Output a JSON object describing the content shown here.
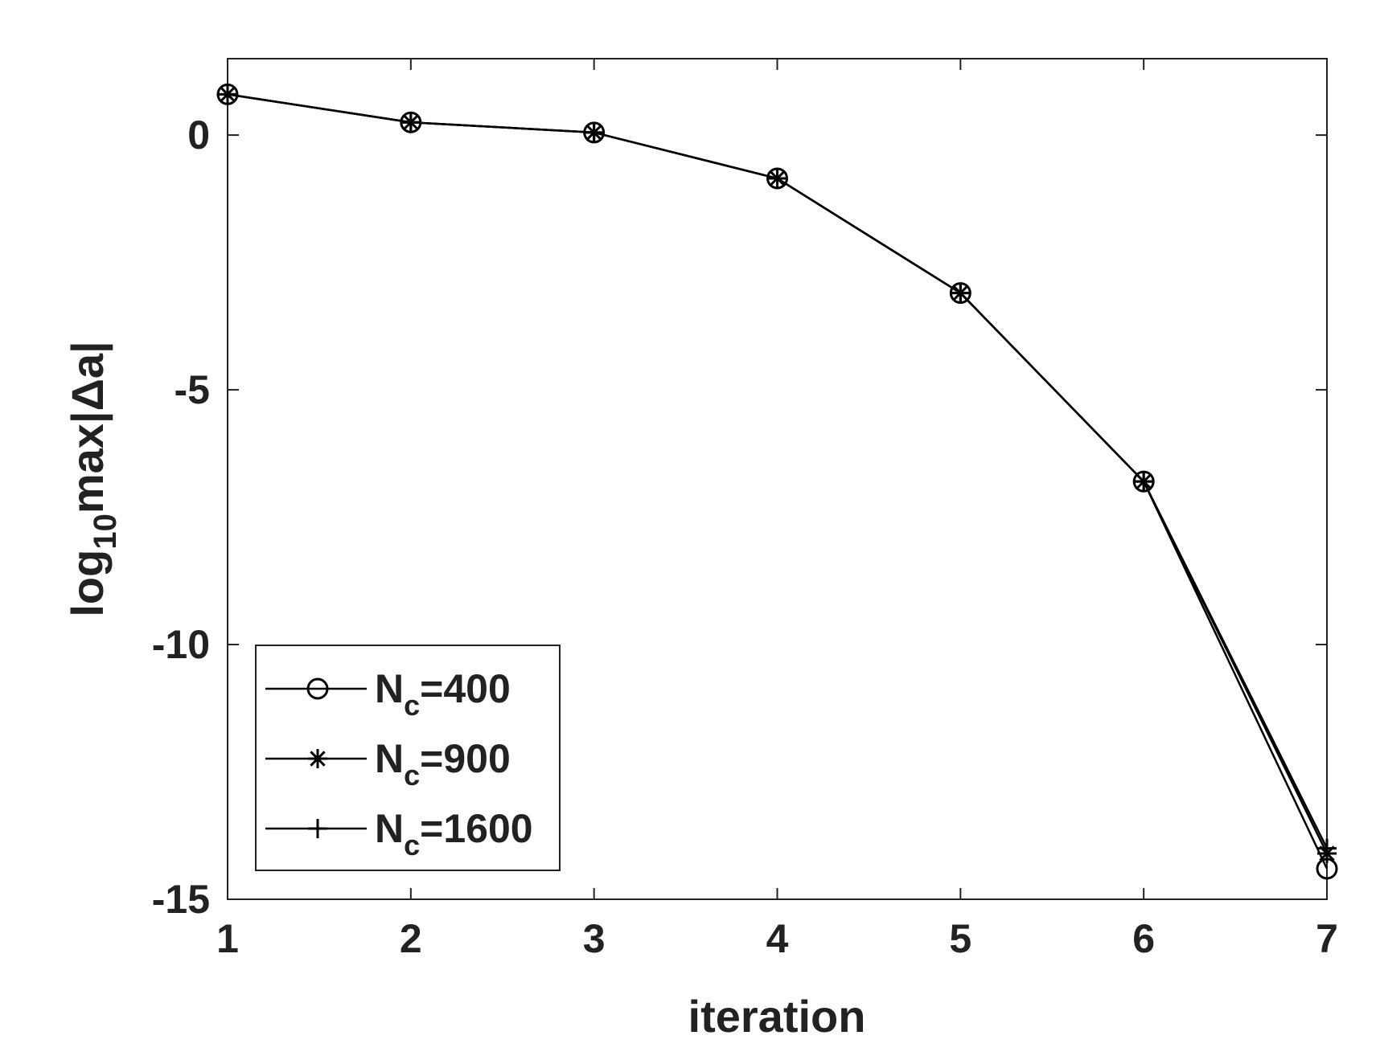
{
  "chart_data": {
    "type": "line",
    "title": "",
    "xlabel": "iteration",
    "ylabel": {
      "prefix": "log",
      "subscript": "10",
      "suffix": "max|Δa|"
    },
    "xlim": [
      1,
      7
    ],
    "ylim": [
      -15,
      1.5
    ],
    "xticks": [
      1,
      2,
      3,
      4,
      5,
      6,
      7
    ],
    "yticks": [
      0,
      -5,
      -10,
      -15
    ],
    "grid": false,
    "legend_position": "bottom-left",
    "colors": {
      "line": "#000000",
      "axis": "#222222",
      "background": "#ffffff"
    },
    "x": [
      1,
      2,
      3,
      4,
      5,
      6,
      7
    ],
    "series": [
      {
        "name": {
          "base": "N",
          "sub": "c",
          "value": "=400"
        },
        "marker": "circle",
        "values": [
          0.8,
          0.25,
          0.05,
          -0.85,
          -3.1,
          -6.8,
          -14.4
        ]
      },
      {
        "name": {
          "base": "N",
          "sub": "c",
          "value": "=900"
        },
        "marker": "asterisk",
        "values": [
          0.8,
          0.25,
          0.05,
          -0.85,
          -3.1,
          -6.8,
          -14.1
        ]
      },
      {
        "name": {
          "base": "N",
          "sub": "c",
          "value": "=1600"
        },
        "marker": "plus",
        "values": [
          0.8,
          0.25,
          0.05,
          -0.85,
          -3.1,
          -6.8,
          -14.0
        ]
      }
    ]
  }
}
